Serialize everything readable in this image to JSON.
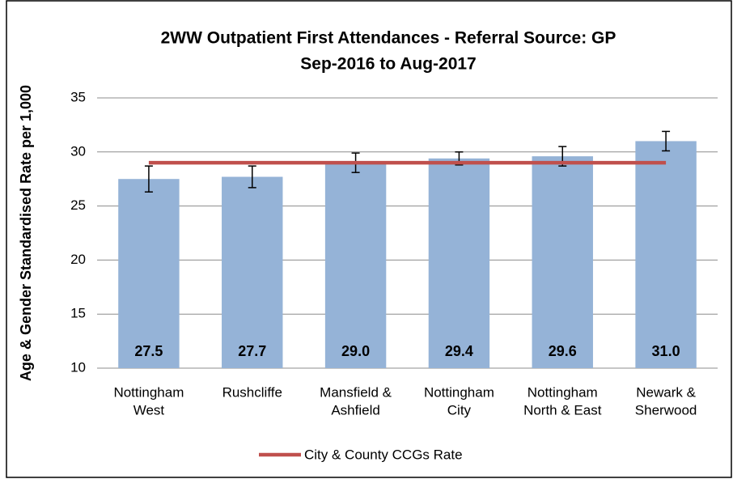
{
  "chart_data": {
    "type": "bar",
    "title": [
      "2WW Outpatient First Attendances - Referral Source: GP",
      "Sep-2016 to Aug-2017"
    ],
    "y_label": "Age & Gender Standardised Rate per 1,000",
    "categories": [
      [
        "Nottingham",
        "West"
      ],
      [
        "Rushcliffe"
      ],
      [
        "Mansfield &",
        "Ashfield"
      ],
      [
        "Nottingham",
        "City"
      ],
      [
        "Nottingham",
        "North & East"
      ],
      [
        "Newark &",
        "Sherwood"
      ]
    ],
    "values": [
      27.5,
      27.7,
      29.0,
      29.4,
      29.6,
      31.0
    ],
    "value_labels": [
      "27.5",
      "27.7",
      "29.0",
      "29.4",
      "29.6",
      "31.0"
    ],
    "errors": [
      1.2,
      1.0,
      0.9,
      0.6,
      0.9,
      0.9
    ],
    "color": "#95b3d7",
    "reference": {
      "name": "City & County CCGs Rate",
      "value": 29,
      "color": "#c0504d"
    },
    "ylim": [
      10,
      35
    ],
    "yticks": [
      10,
      15,
      20,
      25,
      30,
      35
    ],
    "grid": true,
    "legend": "bottom"
  }
}
